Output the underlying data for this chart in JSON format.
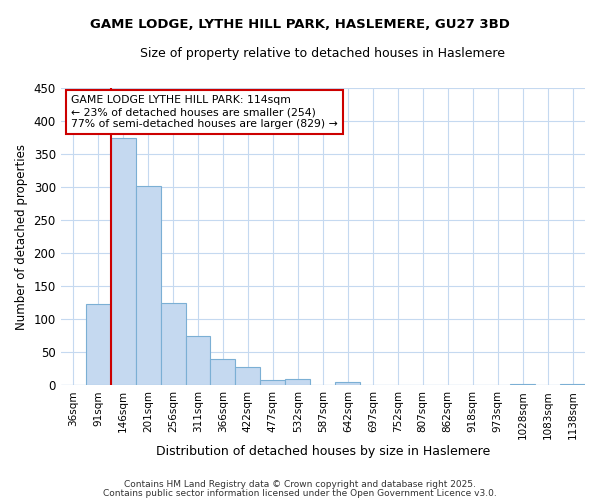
{
  "title1": "GAME LODGE, LYTHE HILL PARK, HASLEMERE, GU27 3BD",
  "title2": "Size of property relative to detached houses in Haslemere",
  "xlabel": "Distribution of detached houses by size in Haslemere",
  "ylabel": "Number of detached properties",
  "categories": [
    "36sqm",
    "91sqm",
    "146sqm",
    "201sqm",
    "256sqm",
    "311sqm",
    "366sqm",
    "422sqm",
    "477sqm",
    "532sqm",
    "587sqm",
    "642sqm",
    "697sqm",
    "752sqm",
    "807sqm",
    "862sqm",
    "918sqm",
    "973sqm",
    "1028sqm",
    "1083sqm",
    "1138sqm"
  ],
  "values": [
    0,
    123,
    375,
    302,
    124,
    74,
    40,
    27,
    8,
    10,
    0,
    5,
    0,
    0,
    0,
    0,
    0,
    0,
    2,
    0,
    2
  ],
  "bar_color": "#c5d9f0",
  "bar_edge_color": "#7bafd4",
  "background_color": "#ffffff",
  "grid_color": "#c5d9f0",
  "vline_color": "#cc0000",
  "annotation_text": "GAME LODGE LYTHE HILL PARK: 114sqm\n← 23% of detached houses are smaller (254)\n77% of semi-detached houses are larger (829) →",
  "annotation_box_color": "#ffffff",
  "annotation_box_edge_color": "#cc0000",
  "ylim": [
    0,
    450
  ],
  "yticks": [
    0,
    50,
    100,
    150,
    200,
    250,
    300,
    350,
    400,
    450
  ],
  "footer_text1": "Contains HM Land Registry data © Crown copyright and database right 2025.",
  "footer_text2": "Contains public sector information licensed under the Open Government Licence v3.0."
}
